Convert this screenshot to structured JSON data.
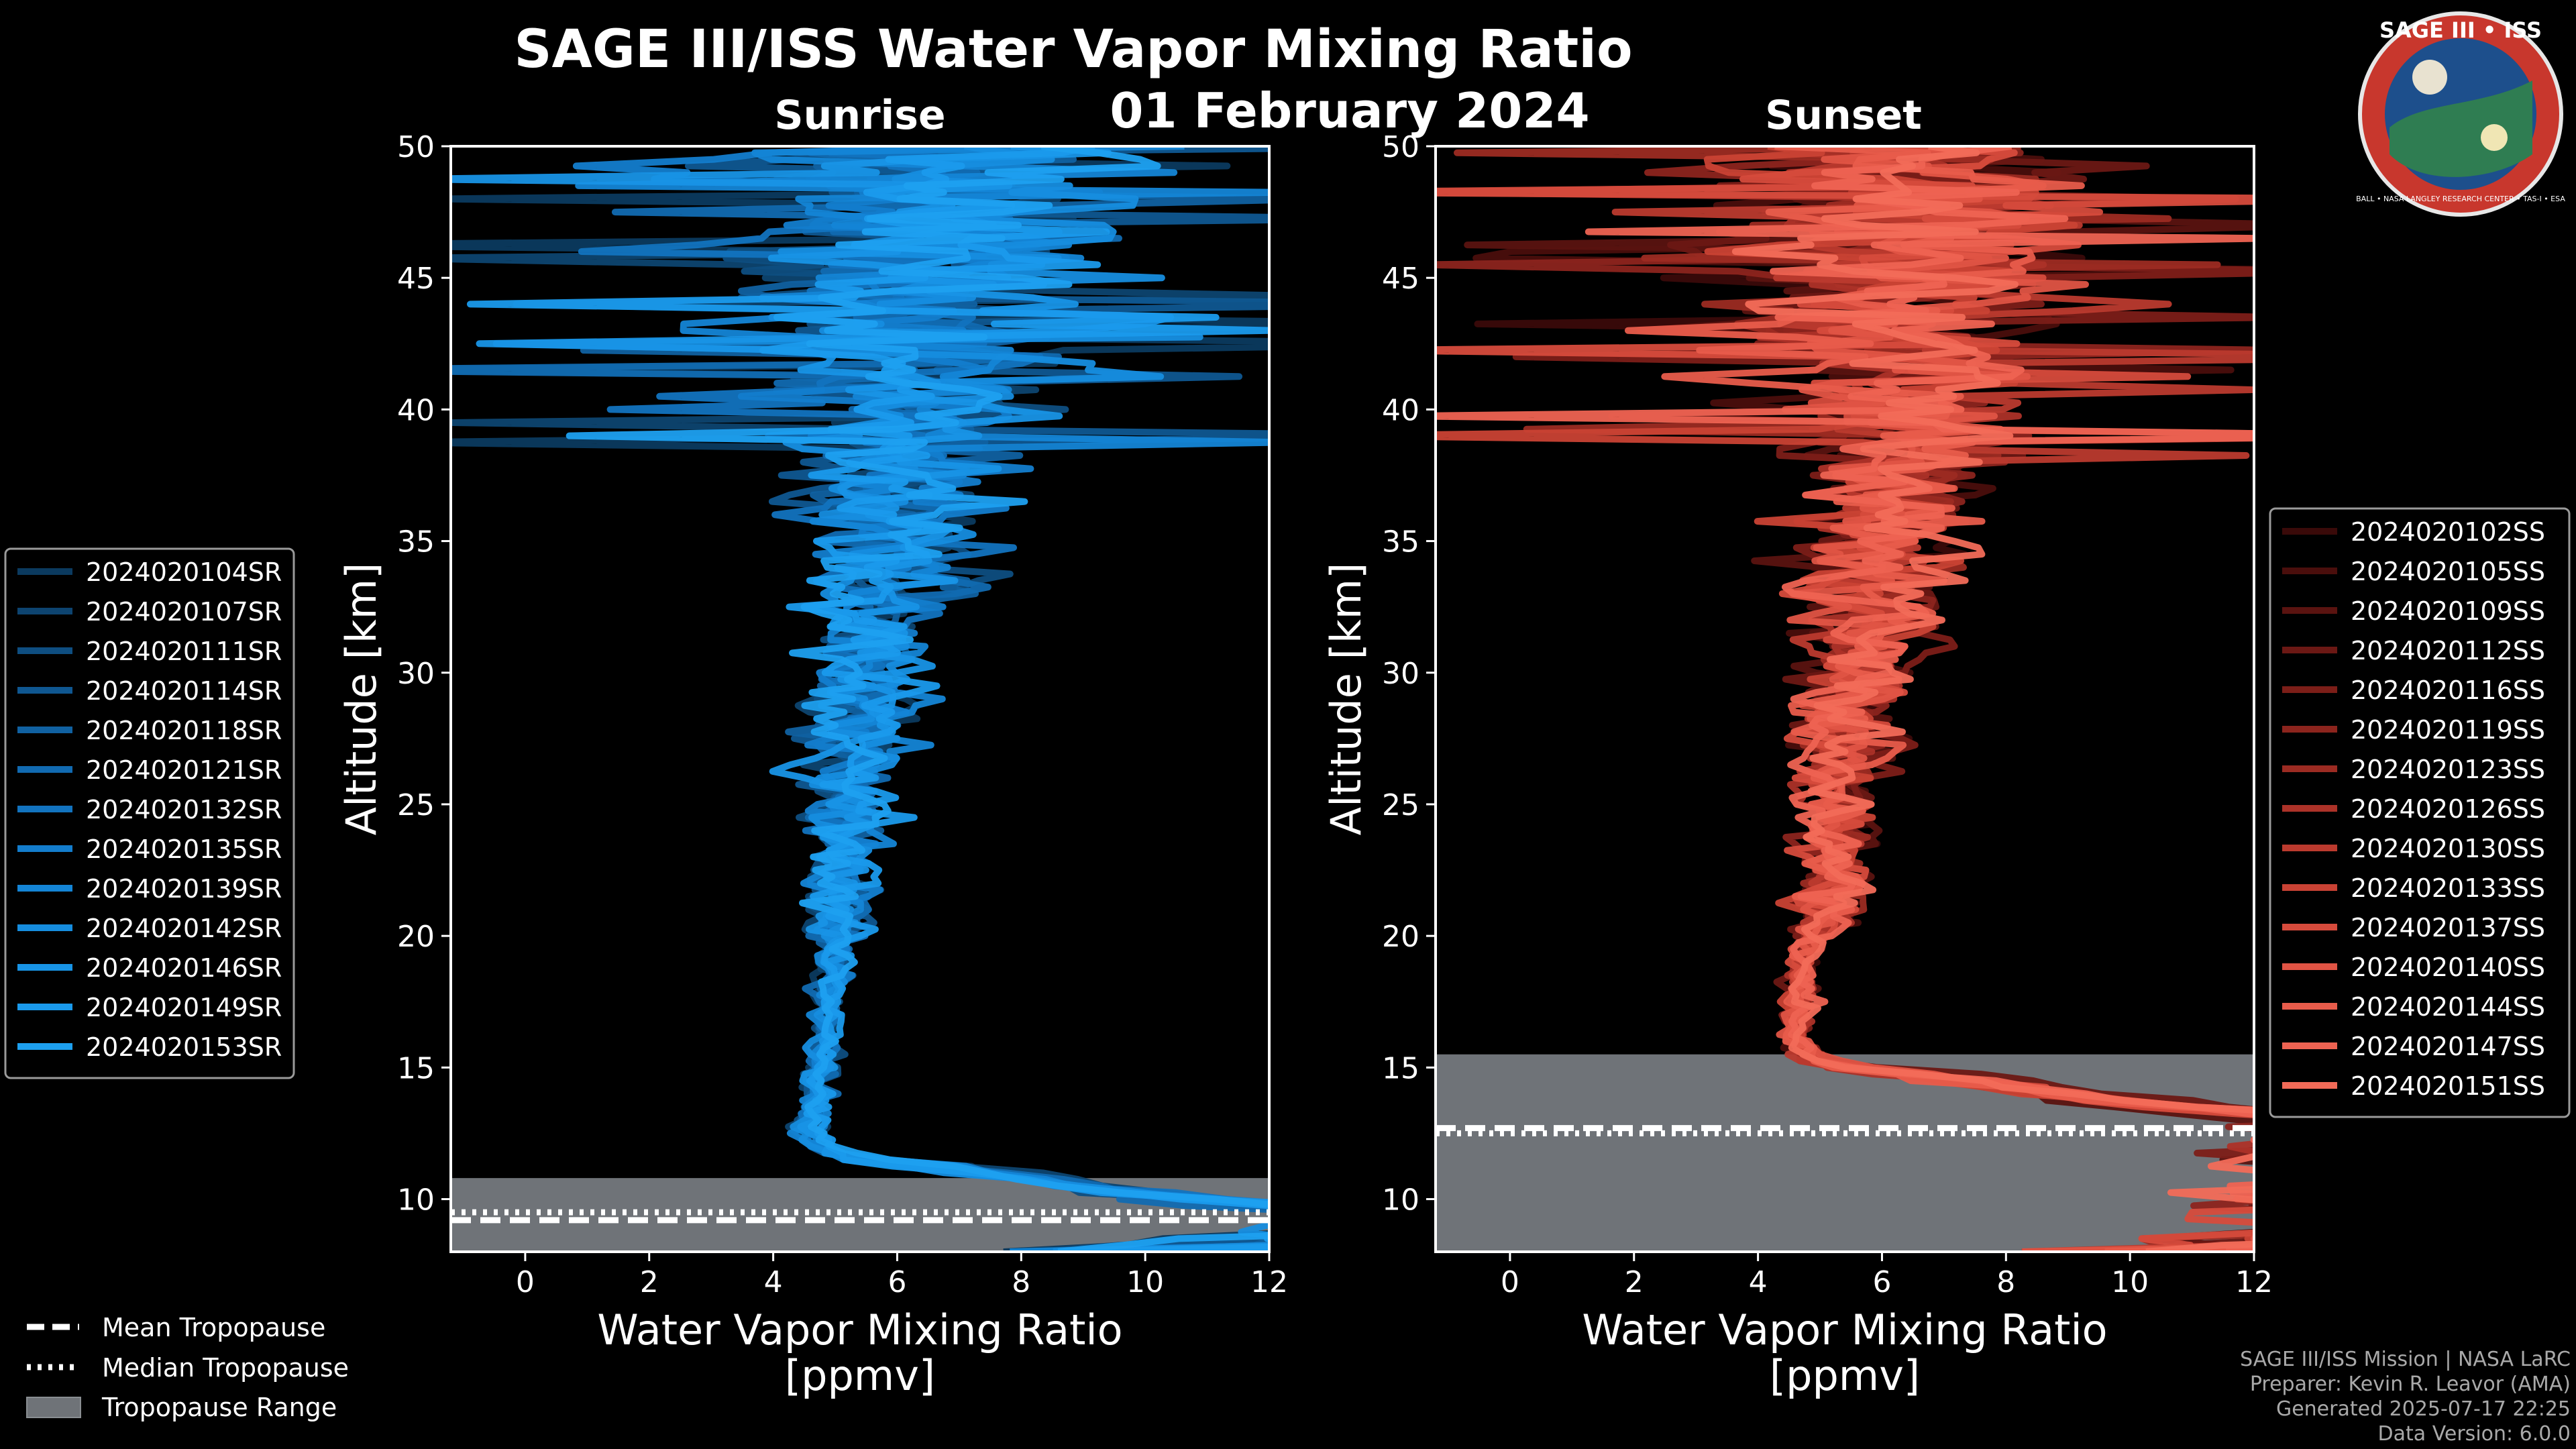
{
  "header": {
    "title": "SAGE III/ISS Water Vapor Mixing Ratio",
    "date": "01 February 2024",
    "left_label": "Sunrise",
    "right_label": "Sunset"
  },
  "logo": {
    "text": "SAGE III • ISS",
    "ring_text": "BALL • NASA LANGLEY RESEARCH CENTER • TAS-I • ESA",
    "colors": {
      "ring": "#c8372d",
      "inner": "#1d4f8c"
    }
  },
  "credits": {
    "line1": "SAGE III/ISS Mission | NASA LaRC",
    "line2": "Preparer: Kevin R. Leavor (AMA)",
    "line3": "Generated 2025-07-17 22:25",
    "line4": "Data Version: 6.0.0"
  },
  "tropo_legend": {
    "mean": "Mean Tropopause",
    "median": "Median Tropopause",
    "range": "Tropopause Range"
  },
  "chart_data": [
    {
      "type": "line",
      "panel": "Sunrise",
      "xlabel": "Water Vapor Mixing Ratio\n[ppmv]",
      "ylabel": "Altitude [km]",
      "xlim": [
        -1.2,
        12
      ],
      "ylim": [
        8,
        50
      ],
      "xticks": [
        0,
        2,
        4,
        6,
        8,
        10,
        12
      ],
      "yticks": [
        10,
        15,
        20,
        25,
        30,
        35,
        40,
        45,
        50
      ],
      "grid": false,
      "legend_position": "left",
      "tropopause": {
        "range": [
          8,
          10.8
        ],
        "mean": 9.2,
        "median": 9.5
      },
      "series": [
        {
          "name": "2024020104SR",
          "color": "#0b3a5f"
        },
        {
          "name": "2024020107SR",
          "color": "#0d4470"
        },
        {
          "name": "2024020111SR",
          "color": "#0e4e81"
        },
        {
          "name": "2024020114SR",
          "color": "#0f5791"
        },
        {
          "name": "2024020118SR",
          "color": "#1061a1"
        },
        {
          "name": "2024020121SR",
          "color": "#116ab1"
        },
        {
          "name": "2024020132SR",
          "color": "#1273bf"
        },
        {
          "name": "2024020135SR",
          "color": "#137dcd"
        },
        {
          "name": "2024020139SR",
          "color": "#1485d6"
        },
        {
          "name": "2024020142SR",
          "color": "#168ddf"
        },
        {
          "name": "2024020146SR",
          "color": "#1894e6"
        },
        {
          "name": "2024020149SR",
          "color": "#1a9aec"
        },
        {
          "name": "2024020153SR",
          "color": "#1da0f0"
        }
      ]
    },
    {
      "type": "line",
      "panel": "Sunset",
      "xlabel": "Water Vapor Mixing Ratio\n[ppmv]",
      "ylabel": "Altitude [km]",
      "xlim": [
        -1.2,
        12
      ],
      "ylim": [
        8,
        50
      ],
      "xticks": [
        0,
        2,
        4,
        6,
        8,
        10,
        12
      ],
      "yticks": [
        10,
        15,
        20,
        25,
        30,
        35,
        40,
        45,
        50
      ],
      "grid": false,
      "legend_position": "right",
      "tropopause": {
        "range": [
          8,
          15.5
        ],
        "mean": 12.7,
        "median": 12.5
      },
      "series": [
        {
          "name": "2024020102SS",
          "color": "#3a0a09"
        },
        {
          "name": "2024020105SS",
          "color": "#4a0e0c"
        },
        {
          "name": "2024020109SS",
          "color": "#5a1310"
        },
        {
          "name": "2024020112SS",
          "color": "#6b1814"
        },
        {
          "name": "2024020116SS",
          "color": "#7c1e18"
        },
        {
          "name": "2024020119SS",
          "color": "#8c241d"
        },
        {
          "name": "2024020123SS",
          "color": "#9c2b22"
        },
        {
          "name": "2024020126SS",
          "color": "#ac3228"
        },
        {
          "name": "2024020130SS",
          "color": "#bb3a2e"
        },
        {
          "name": "2024020133SS",
          "color": "#c94234"
        },
        {
          "name": "2024020137SS",
          "color": "#d64b3c"
        },
        {
          "name": "2024020140SS",
          "color": "#e05444"
        },
        {
          "name": "2024020144SS",
          "color": "#e85c4b"
        },
        {
          "name": "2024020147SS",
          "color": "#ee6352"
        },
        {
          "name": "2024020151SS",
          "color": "#f26b58"
        }
      ]
    }
  ]
}
